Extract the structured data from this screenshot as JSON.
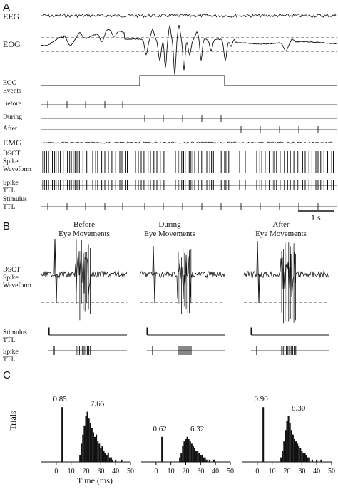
{
  "panels": {
    "A": "A",
    "B": "B",
    "C": "C"
  },
  "panel_a": {
    "traces": {
      "eeg": "EEG",
      "eog": "EOG",
      "events_line1": "EOG",
      "events_line2": "Events",
      "before": "Before",
      "during": "During",
      "after": "After",
      "emg": "EMG",
      "dsct_line1": "DSCT",
      "dsct_line2": "Spike",
      "dsct_line3": "Waveform",
      "spike_ttl_line1": "Spike",
      "spike_ttl_line2": "TTL",
      "stim_ttl_line1": "Stimulus",
      "stim_ttl_line2": "TTL"
    },
    "scale_bar": "1 s"
  },
  "panel_b": {
    "columns": [
      {
        "line1": "Before",
        "line2": "Eye Movements"
      },
      {
        "line1": "During",
        "line2": "Eye Movements"
      },
      {
        "line1": "After",
        "line2": "Eye Movements"
      }
    ],
    "row_labels": {
      "dsct_line1": "DSCT",
      "dsct_line2": "Spike",
      "dsct_line3": "Waveform",
      "stim_line1": "Stimulus",
      "stim_line2": "TTL",
      "spike_line1": "Spike",
      "spike_line2": "TTL"
    }
  },
  "chart_data": {
    "type": "bar",
    "ylabel": "Trials",
    "xlabel": "Time  (ms)",
    "x_ticks": [
      0,
      10,
      20,
      30,
      40,
      50
    ],
    "xlim": [
      -10,
      50
    ],
    "ylim": [
      0,
      40
    ],
    "histograms": [
      {
        "column": "Before",
        "early_label": "0.85",
        "late_label": "7.65",
        "early": [
          {
            "x": 4,
            "y": 24
          }
        ],
        "late": [
          {
            "x": 16,
            "y": 3
          },
          {
            "x": 17,
            "y": 8
          },
          {
            "x": 18,
            "y": 12
          },
          {
            "x": 19,
            "y": 16
          },
          {
            "x": 20,
            "y": 20
          },
          {
            "x": 21,
            "y": 22
          },
          {
            "x": 22,
            "y": 19
          },
          {
            "x": 23,
            "y": 17
          },
          {
            "x": 24,
            "y": 15
          },
          {
            "x": 25,
            "y": 13
          },
          {
            "x": 26,
            "y": 11
          },
          {
            "x": 27,
            "y": 12
          },
          {
            "x": 28,
            "y": 9
          },
          {
            "x": 29,
            "y": 8
          },
          {
            "x": 30,
            "y": 6
          },
          {
            "x": 31,
            "y": 7
          },
          {
            "x": 32,
            "y": 5
          },
          {
            "x": 33,
            "y": 4
          },
          {
            "x": 34,
            "y": 3
          },
          {
            "x": 35,
            "y": 4
          },
          {
            "x": 36,
            "y": 2
          },
          {
            "x": 37,
            "y": 2
          },
          {
            "x": 38,
            "y": 1
          },
          {
            "x": 40,
            "y": 1
          },
          {
            "x": 44,
            "y": 1
          }
        ]
      },
      {
        "column": "During",
        "early_label": "0.62",
        "late_label": "6.32",
        "early": [
          {
            "x": 4,
            "y": 11
          }
        ],
        "late": [
          {
            "x": 16,
            "y": 2
          },
          {
            "x": 17,
            "y": 4
          },
          {
            "x": 18,
            "y": 7
          },
          {
            "x": 19,
            "y": 9
          },
          {
            "x": 20,
            "y": 10
          },
          {
            "x": 21,
            "y": 11
          },
          {
            "x": 22,
            "y": 10
          },
          {
            "x": 23,
            "y": 9
          },
          {
            "x": 24,
            "y": 8
          },
          {
            "x": 25,
            "y": 7
          },
          {
            "x": 26,
            "y": 6
          },
          {
            "x": 27,
            "y": 5
          },
          {
            "x": 28,
            "y": 5
          },
          {
            "x": 29,
            "y": 4
          },
          {
            "x": 30,
            "y": 3
          },
          {
            "x": 31,
            "y": 3
          },
          {
            "x": 32,
            "y": 2
          },
          {
            "x": 33,
            "y": 2
          },
          {
            "x": 34,
            "y": 1
          },
          {
            "x": 36,
            "y": 1
          },
          {
            "x": 39,
            "y": 1
          }
        ]
      },
      {
        "column": "After",
        "early_label": "0.90",
        "late_label": "8.30",
        "early": [
          {
            "x": 4,
            "y": 24
          }
        ],
        "late": [
          {
            "x": 16,
            "y": 2
          },
          {
            "x": 17,
            "y": 5
          },
          {
            "x": 18,
            "y": 9
          },
          {
            "x": 19,
            "y": 14
          },
          {
            "x": 20,
            "y": 18
          },
          {
            "x": 21,
            "y": 20
          },
          {
            "x": 22,
            "y": 17
          },
          {
            "x": 23,
            "y": 14
          },
          {
            "x": 24,
            "y": 12
          },
          {
            "x": 25,
            "y": 10
          },
          {
            "x": 26,
            "y": 9
          },
          {
            "x": 27,
            "y": 8
          },
          {
            "x": 28,
            "y": 7
          },
          {
            "x": 29,
            "y": 6
          },
          {
            "x": 30,
            "y": 5
          },
          {
            "x": 31,
            "y": 4
          },
          {
            "x": 32,
            "y": 4
          },
          {
            "x": 33,
            "y": 3
          },
          {
            "x": 34,
            "y": 2
          },
          {
            "x": 35,
            "y": 2
          },
          {
            "x": 37,
            "y": 1
          },
          {
            "x": 40,
            "y": 1
          },
          {
            "x": 43,
            "y": 1
          }
        ]
      }
    ]
  }
}
